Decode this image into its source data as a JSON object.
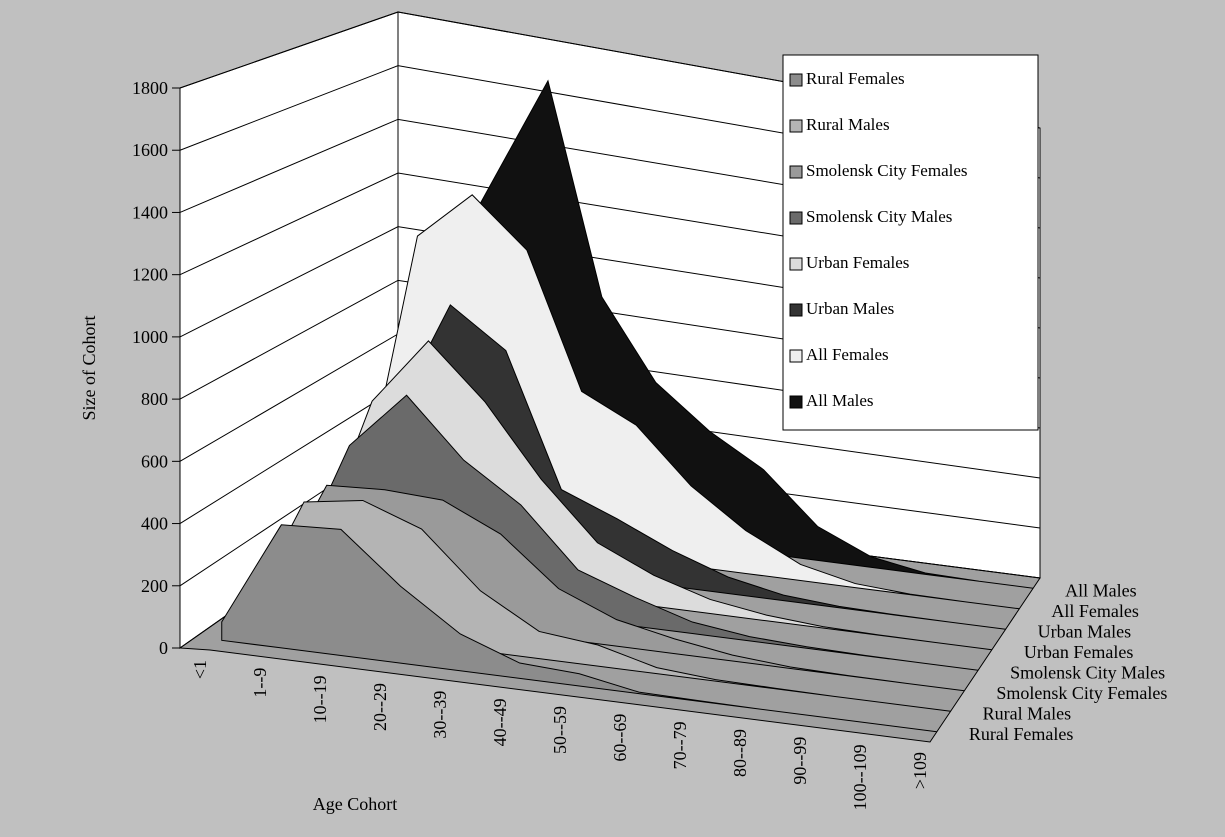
{
  "chart_data": {
    "type": "area3d",
    "x_label": "Age Cohort",
    "y_label": "Size of Cohort",
    "categories": [
      "<1",
      "1--9",
      "10--19",
      "20--29",
      "30--39",
      "40--49",
      "50--59",
      "60--69",
      "70--79",
      "80--89",
      "90--99",
      "100--109",
      ">109"
    ],
    "ylim": [
      0,
      1800
    ],
    "yticks": [
      0,
      200,
      400,
      600,
      800,
      1000,
      1200,
      1400,
      1600,
      1800
    ],
    "grid": true,
    "legend": "upper right",
    "series": [
      {
        "name": "Rural Females",
        "color": "#8c8c8c",
        "values": [
          60,
          400,
          410,
          250,
          120,
          50,
          40,
          5,
          2,
          0,
          0,
          0,
          0
        ]
      },
      {
        "name": "Rural Males",
        "color": "#b4b4b4",
        "values": [
          20,
          420,
          450,
          380,
          200,
          90,
          70,
          20,
          5,
          2,
          0,
          0,
          0
        ]
      },
      {
        "name": "Smolensk City Females",
        "color": "#9a9a9a",
        "values": [
          30,
          420,
          430,
          420,
          330,
          170,
          90,
          50,
          20,
          5,
          1,
          0,
          0
        ]
      },
      {
        "name": "Smolensk City Males",
        "color": "#6a6a6a",
        "values": [
          40,
          500,
          700,
          500,
          370,
          170,
          100,
          40,
          15,
          5,
          1,
          0,
          0
        ]
      },
      {
        "name": "Urban Females",
        "color": "#dcdcdc",
        "values": [
          50,
          600,
          840,
          650,
          400,
          200,
          110,
          50,
          20,
          5,
          1,
          0,
          0
        ]
      },
      {
        "name": "Urban Males",
        "color": "#333333",
        "values": [
          50,
          500,
          920,
          780,
          300,
          220,
          130,
          60,
          20,
          5,
          1,
          0,
          0
        ]
      },
      {
        "name": "All Females",
        "color": "#efefef",
        "values": [
          100,
          1100,
          1280,
          1100,
          600,
          500,
          300,
          160,
          60,
          15,
          2,
          0,
          0
        ]
      },
      {
        "name": "All Males",
        "color": "#111111",
        "values": [
          100,
          900,
          1300,
          1700,
          900,
          600,
          440,
          320,
          130,
          40,
          5,
          0,
          0
        ]
      }
    ]
  }
}
